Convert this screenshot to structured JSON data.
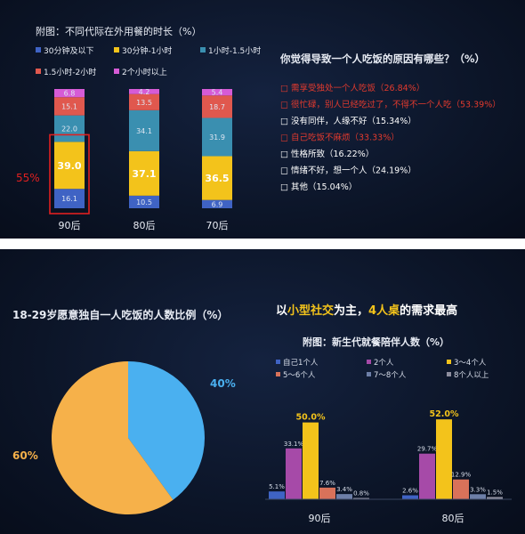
{
  "chart_data": [
    {
      "type": "bar",
      "stacked": true,
      "title": "附图：不同代际在外用餐的时长（%）",
      "categories": [
        "90后",
        "80后",
        "70后"
      ],
      "series": [
        {
          "name": "30分钟及以下",
          "color": "#3f63c4",
          "values": [
            16.1,
            10.5,
            6.9
          ]
        },
        {
          "name": "30分钟-1小时",
          "color": "#f3c31b",
          "values": [
            39.0,
            37.1,
            36.5
          ]
        },
        {
          "name": "1小时-1.5小时",
          "color": "#3a8fb0",
          "values": [
            22.0,
            34.1,
            31.9
          ]
        },
        {
          "name": "1.5小时-2小时",
          "color": "#e0584e",
          "values": [
            15.1,
            13.5,
            18.7
          ]
        },
        {
          "name": "2个小时以上",
          "color": "#d65bd6",
          "values": [
            6.8,
            4.2,
            5.4
          ]
        }
      ],
      "ylim": [
        0,
        100
      ],
      "highlight": {
        "category": "90后",
        "label": "55%",
        "color": "#e02020"
      }
    },
    {
      "type": "table",
      "title": "你觉得导致一个人吃饭的原因有哪些？（%）",
      "items": [
        {
          "text": "□ 需享受独处一个人吃饭（26.84%）",
          "color": "#e23a2e"
        },
        {
          "text": "□ 很忙碌，别人已经吃过了，不得不一个人吃（53.39%）",
          "color": "#e23a2e"
        },
        {
          "text": "□ 没有同伴，人缘不好（15.34%）",
          "color": "#ffffff"
        },
        {
          "text": "□ 自己吃饭不麻烦（33.33%）",
          "color": "#e23a2e"
        },
        {
          "text": "□ 性格所致（16.22%）",
          "color": "#ffffff"
        },
        {
          "text": "□ 情绪不好，想一个人（24.19%）",
          "color": "#ffffff"
        },
        {
          "text": "□ 其他（15.04%）",
          "color": "#ffffff"
        }
      ]
    },
    {
      "type": "pie",
      "title": "18-29岁愿意独自一人吃饭的人数比例（%）",
      "slices": [
        {
          "label": "40%",
          "value": 40,
          "color": "#4ab0f0"
        },
        {
          "label": "60%",
          "value": 60,
          "color": "#f6b14a"
        }
      ]
    },
    {
      "type": "bar",
      "headline": {
        "parts": [
          {
            "text": "以",
            "color": "#ffffff"
          },
          {
            "text": "小型社交",
            "color": "#f3c31b"
          },
          {
            "text": "为主，",
            "color": "#ffffff"
          },
          {
            "text": "4人桌",
            "color": "#f3c31b"
          },
          {
            "text": "的需求最高",
            "color": "#ffffff"
          }
        ]
      },
      "title": "附图：新生代就餐陪伴人数（%）",
      "categories": [
        "90后",
        "80后"
      ],
      "series": [
        {
          "name": "自己1个人",
          "color": "#3f63c4",
          "values": [
            5.1,
            2.6
          ]
        },
        {
          "name": "2个人",
          "color": "#a64aa8",
          "values": [
            33.1,
            29.7
          ]
        },
        {
          "name": "3～4个人",
          "color": "#f3c31b",
          "values": [
            50.0,
            52.0
          ]
        },
        {
          "name": "5～6个人",
          "color": "#d9725a",
          "values": [
            7.6,
            12.9
          ]
        },
        {
          "name": "7～8个人",
          "color": "#6d7fa8",
          "values": [
            3.4,
            3.3
          ]
        },
        {
          "name": "8个人以上",
          "color": "#8e8e9e",
          "values": [
            0.8,
            1.5
          ]
        }
      ],
      "data_labels": [
        [
          "5.1%",
          "33.1%",
          "50.0%",
          "7.6%",
          "3.4%",
          "0.8%"
        ],
        [
          "2.6%",
          "29.7%",
          "52.0%",
          "12.9%",
          "3.3%",
          "1.5%"
        ]
      ],
      "ylim": [
        0,
        55
      ]
    }
  ]
}
